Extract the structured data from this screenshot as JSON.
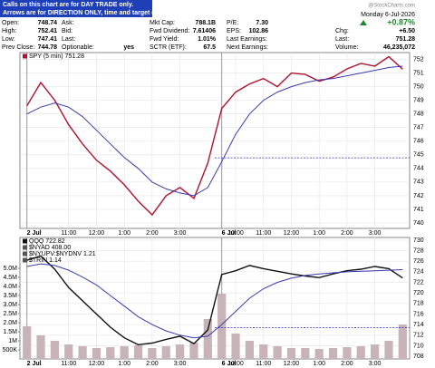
{
  "header": {
    "banner": [
      "Calls on this chart are for DAY TRADE only.",
      "Arrows are for DIRECTION ONLY, time and target don't count."
    ],
    "date": "Monday 6-Jul-2026",
    "watermark": "@StockCharts.com",
    "change_pct": "+0.87%",
    "columns": [
      [
        {
          "label": "Open:",
          "value": "748.74"
        },
        {
          "label": "High:",
          "value": "752.41"
        },
        {
          "label": "Low:",
          "value": "747.41"
        },
        {
          "label": "Prev Close:",
          "value": "744.78"
        }
      ],
      [
        {
          "label": "Ask:"
        },
        {
          "label": "Bid:"
        },
        {
          "label": "Last:"
        },
        {
          "label": "Optionable:",
          "value": "yes"
        }
      ],
      [
        {
          "label": "Mkt Cap:",
          "value": "788.1B"
        },
        {
          "label": "Fwd Dividend:",
          "value": "7.61406"
        },
        {
          "label": "Fwd Yield:",
          "value": "1.01%"
        },
        {
          "label": "SCTR (ETF):",
          "value": "67.5"
        }
      ],
      [
        {
          "label": "P/E:",
          "value": "7.30"
        },
        {
          "label": "EPS:",
          "value": "102.86"
        },
        {
          "label": "Last Earnings:"
        },
        {
          "label": "Next Earnings:"
        }
      ],
      [
        {
          "label": "Chg:",
          "value": "+6.50"
        },
        {
          "label": "Last:",
          "value": "751.28"
        },
        {
          "label": "Volume:",
          "value": "46,235,072"
        }
      ]
    ]
  },
  "chart_data": [
    {
      "type": "line",
      "legend": [
        "SPY (5 min) 751.28"
      ],
      "xlim": [
        -0.5,
        27.5
      ],
      "ylim": [
        739.6,
        752.5
      ],
      "yticks": [
        740,
        741,
        742,
        743,
        744,
        745,
        746,
        747,
        748,
        749,
        750,
        751,
        752
      ],
      "xticks": [
        {
          "value": 0,
          "label": "2 Jul"
        },
        {
          "value": 3,
          "label": "11:00"
        },
        {
          "value": 5,
          "label": "12:00"
        },
        {
          "value": 7,
          "label": "1:00"
        },
        {
          "value": 9,
          "label": "2:00"
        },
        {
          "value": 11,
          "label": "3:00"
        },
        {
          "value": 14,
          "label": "6 Jul"
        },
        {
          "value": 15,
          "label": "10:00"
        },
        {
          "value": 17,
          "label": "11:00"
        },
        {
          "value": 19,
          "label": "12:00"
        },
        {
          "value": 21,
          "label": "1:00"
        },
        {
          "value": 23,
          "label": "2:00"
        },
        {
          "value": 25,
          "label": "3:00"
        }
      ],
      "reference_line": 744.78,
      "grid": true,
      "series": [
        {
          "color": "#b01030",
          "values": [
            748.6,
            750.3,
            749.0,
            747.2,
            745.8,
            744.6,
            743.8,
            742.8,
            741.6,
            740.6,
            742.0,
            742.6,
            741.8,
            744.4,
            748.4,
            749.6,
            750.2,
            750.6,
            750.0,
            751.0,
            750.9,
            750.4,
            750.7,
            751.3,
            751.7,
            751.5,
            752.2,
            751.28
          ]
        },
        {
          "color": "#3a3ab0",
          "values": [
            748.0,
            748.5,
            748.8,
            748.5,
            747.8,
            746.8,
            745.8,
            744.8,
            744.0,
            743.0,
            742.5,
            742.2,
            742.0,
            742.6,
            744.5,
            746.5,
            748.0,
            749.0,
            749.6,
            750.0,
            750.3,
            750.5,
            750.6,
            750.8,
            751.0,
            751.2,
            751.4,
            751.5
          ]
        }
      ]
    },
    {
      "type": "line",
      "legend": [
        "QQQ 722.82",
        "$NYAD 408.00",
        "$NYUPV:$NYDNV 1.21",
        "$TRIN 1.14"
      ],
      "xlim": [
        -0.5,
        27.5
      ],
      "ylim": [
        0,
        6700000
      ],
      "y2lim": [
        707.5,
        730.5
      ],
      "yticks": [
        {
          "value": 500000,
          "label": "500K"
        },
        {
          "value": 1000000,
          "label": "1M"
        },
        {
          "value": 1500000,
          "label": "1.5M"
        },
        {
          "value": 2000000,
          "label": "2.0M"
        },
        {
          "value": 2500000,
          "label": "2.5M"
        },
        {
          "value": 3000000,
          "label": "3.0M"
        },
        {
          "value": 3500000,
          "label": "3.5M"
        },
        {
          "value": 4000000,
          "label": "4.0M"
        },
        {
          "value": 4500000,
          "label": "4.5M"
        },
        {
          "value": 5000000,
          "label": "5.0M"
        }
      ],
      "y2ticks": [
        708,
        710,
        712,
        714,
        716,
        718,
        720,
        722,
        724,
        726,
        728,
        730
      ],
      "xticks": [
        {
          "value": 0,
          "label": "2 Jul"
        },
        {
          "value": 3,
          "label": "11:00"
        },
        {
          "value": 5,
          "label": "12:00"
        },
        {
          "value": 7,
          "label": "1:00"
        },
        {
          "value": 9,
          "label": "2:00"
        },
        {
          "value": 11,
          "label": "3:00"
        },
        {
          "value": 14,
          "label": "6 Jul"
        },
        {
          "value": 15,
          "label": "10:00"
        },
        {
          "value": 17,
          "label": "11:00"
        },
        {
          "value": 19,
          "label": "12:00"
        },
        {
          "value": 21,
          "label": "1:00"
        },
        {
          "value": 23,
          "label": "2:00"
        },
        {
          "value": 25,
          "label": "3:00"
        }
      ],
      "reference_line": 713.4,
      "grid": true,
      "volume_color": "#c8b4b8",
      "volume": [
        1800000,
        1300000,
        1000000,
        800000,
        700000,
        600000,
        650000,
        700000,
        750000,
        600000,
        700000,
        800000,
        900000,
        2200000,
        3600000,
        1400000,
        1000000,
        800000,
        700000,
        600000,
        600000,
        550000,
        600000,
        650000,
        700000,
        800000,
        1000000,
        1900000
      ],
      "series": [
        {
          "color": "#111111",
          "axis": "y2",
          "values": [
            726.2,
            727.0,
            724.5,
            721.0,
            718.5,
            716.0,
            713.5,
            711.5,
            710.2,
            710.5,
            711.2,
            711.8,
            710.4,
            713.0,
            723.5,
            724.2,
            725.2,
            724.6,
            724.1,
            723.6,
            723.2,
            722.9,
            723.6,
            724.2,
            724.5,
            725.0,
            724.6,
            722.82
          ]
        },
        {
          "color": "#3a3ab0",
          "axis": "y2",
          "values": [
            725,
            725.5,
            725.2,
            724.3,
            723,
            721.5,
            719.5,
            717.5,
            715.5,
            714,
            712.8,
            712,
            711.5,
            711.8,
            714,
            716.5,
            719,
            720.8,
            722,
            722.8,
            723.3,
            723.6,
            723.8,
            724,
            724.1,
            724.2,
            724.3,
            724.4
          ]
        }
      ]
    }
  ]
}
